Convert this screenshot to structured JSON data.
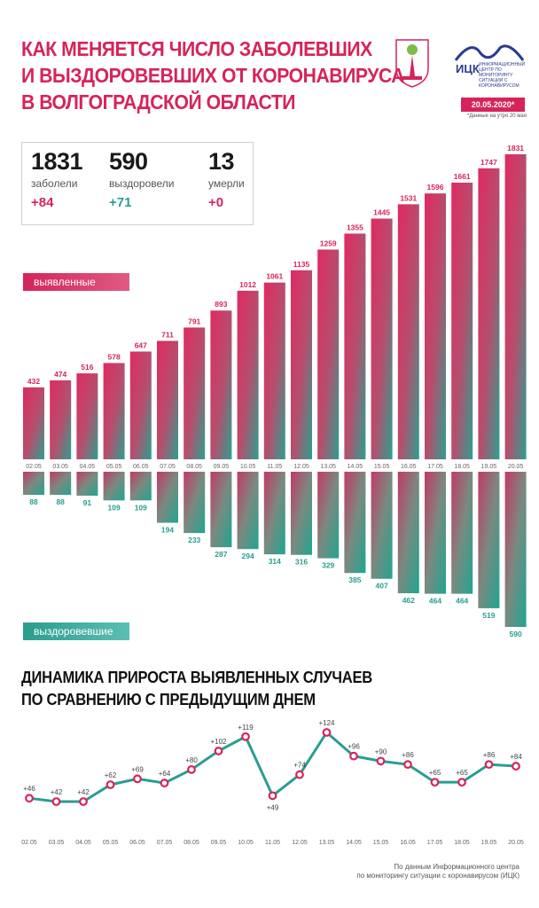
{
  "header": {
    "title_lines": [
      "КАК МЕНЯЕТСЯ ЧИСЛО ЗАБОЛЕВШИХ",
      "И ВЫЗДОРОВЕВШИХ ОТ КОРОНАВИРУСА",
      "В ВОЛГОГРАДСКОЙ ОБЛАСТИ"
    ],
    "org_name": "ИЦК",
    "org_sub": "ИНФОРМАЦИОННЫЙ ЦЕНТР ПО МОНИТОРИНГУ СИТУАЦИИ С КОРОНАВИРУСОМ",
    "date": "20.05.2020*",
    "date_note": "*Данные на утро 20 мая",
    "emblem_icon": "volgograd-emblem-icon",
    "org_logo_icon": "itsk-logo-icon"
  },
  "stats": {
    "cases": {
      "value": "1831",
      "label": "заболели",
      "delta": "+84"
    },
    "recovered": {
      "value": "590",
      "label": "выздоровели",
      "delta": "+71"
    },
    "deaths": {
      "value": "13",
      "label": "умерли",
      "delta": "+0"
    }
  },
  "labels": {
    "cases": "выявленные случаи",
    "recovered": "выздоровевшие"
  },
  "section2": {
    "title_lines": [
      "ДИНАМИКА ПРИРОСТА ВЫЯВЛЕННЫХ СЛУЧАЕВ",
      "ПО СРАВНЕНИЮ С ПРЕДЫДУЩИМ ДНЕМ"
    ]
  },
  "footer": {
    "lines": [
      "По данным Информационного центра",
      "по мониторингу ситуации с коронавирусом (ИЦК)"
    ]
  },
  "colors": {
    "pink": "#d6245a",
    "teal": "#2a9d8f"
  },
  "chart_data": [
    {
      "type": "bar",
      "categories": [
        "02.05",
        "03.05",
        "04.05",
        "05.05",
        "06.05",
        "07.05",
        "08.05",
        "09.05",
        "10.05",
        "11.05",
        "12.05",
        "13.05",
        "14.05",
        "15.05",
        "16.05",
        "17.05",
        "18.05",
        "19.05",
        "20.05"
      ],
      "series": [
        {
          "name": "выявленные случаи",
          "values": [
            432,
            474,
            516,
            578,
            647,
            711,
            791,
            893,
            1012,
            1061,
            1135,
            1259,
            1355,
            1445,
            1531,
            1596,
            1661,
            1747,
            1831
          ]
        },
        {
          "name": "выздоровевшие",
          "values": [
            88,
            88,
            91,
            109,
            109,
            194,
            233,
            287,
            294,
            314,
            316,
            329,
            385,
            407,
            462,
            464,
            464,
            519,
            590
          ]
        }
      ]
    },
    {
      "type": "line",
      "categories": [
        "02.05",
        "03.05",
        "04.05",
        "05.05",
        "06.05",
        "07.05",
        "08.05",
        "09.05",
        "10.05",
        "11.05",
        "12.05",
        "13.05",
        "14.05",
        "15.05",
        "16.05",
        "17.05",
        "18.05",
        "19.05",
        "20.05"
      ],
      "values": [
        46,
        42,
        42,
        62,
        69,
        64,
        80,
        102,
        119,
        49,
        74,
        124,
        96,
        90,
        86,
        65,
        65,
        86,
        84
      ],
      "labels": [
        "+46",
        "+42",
        "+42",
        "+62",
        "+69",
        "+64",
        "+80",
        "+102",
        "+119",
        "+49",
        "+74",
        "+124",
        "+96",
        "+90",
        "+86",
        "+65",
        "+65",
        "+86",
        "+84"
      ]
    }
  ]
}
